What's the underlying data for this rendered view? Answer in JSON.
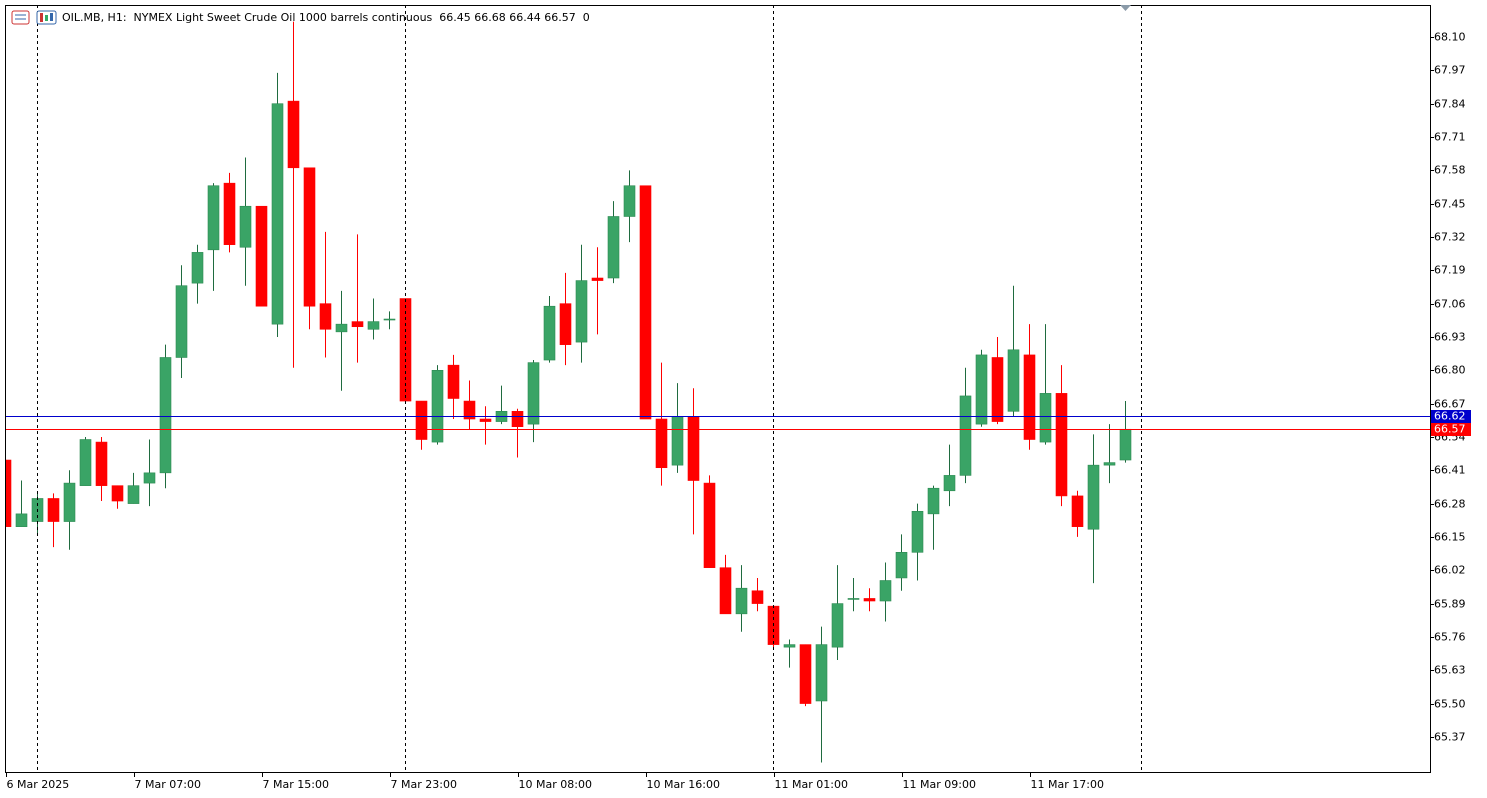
{
  "chart_data": {
    "type": "candlestick",
    "title": "OIL.MB, H1:  NYMEX Light Sweet Crude Oil 1000 barrels continuous  66.45 66.68 66.44 66.57  0",
    "categories": [
      "6 Mar 2025",
      null,
      null,
      null,
      null,
      null,
      null,
      null,
      "7 Mar 07:00",
      null,
      null,
      null,
      null,
      null,
      null,
      null,
      "7 Mar 15:00",
      null,
      null,
      null,
      null,
      null,
      null,
      null,
      "7 Mar 23:00",
      null,
      null,
      null,
      null,
      null,
      null,
      null,
      "10 Mar 08:00",
      null,
      null,
      null,
      null,
      null,
      null,
      null,
      "10 Mar 16:00",
      null,
      null,
      null,
      null,
      null,
      null,
      null,
      "11 Mar 01:00",
      null,
      null,
      null,
      null,
      null,
      null,
      null,
      "11 Mar 09:00",
      null,
      null,
      null,
      null,
      null,
      null,
      null,
      "11 Mar 17:00",
      null,
      null,
      null,
      null,
      null,
      null
    ],
    "open": [
      66.45,
      66.19,
      66.21,
      66.3,
      66.21,
      66.35,
      66.52,
      66.35,
      66.28,
      66.36,
      66.4,
      66.85,
      67.14,
      67.27,
      67.53,
      67.28,
      67.44,
      66.98,
      67.85,
      67.59,
      67.06,
      66.95,
      66.99,
      66.96,
      67.0,
      67.08,
      66.68,
      66.52,
      66.82,
      66.68,
      66.61,
      66.6,
      66.64,
      66.59,
      66.84,
      67.06,
      66.91,
      67.16,
      67.16,
      67.4,
      67.52,
      66.61,
      66.43,
      66.62,
      66.36,
      66.03,
      65.85,
      65.94,
      65.88,
      65.72,
      65.73,
      65.51,
      65.72,
      65.91,
      65.91,
      65.9,
      65.99,
      66.09,
      66.24,
      66.33,
      66.39,
      66.59,
      66.85,
      66.64,
      66.86,
      66.52,
      66.71,
      66.31,
      66.18,
      66.43,
      66.45
    ],
    "high": [
      66.45,
      66.37,
      66.32,
      66.32,
      66.41,
      66.54,
      66.54,
      66.35,
      66.4,
      66.53,
      66.9,
      67.21,
      67.29,
      67.53,
      67.57,
      67.63,
      67.44,
      67.96,
      68.16,
      67.59,
      67.34,
      67.11,
      67.33,
      67.08,
      67.03,
      67.08,
      66.68,
      66.82,
      66.86,
      66.76,
      66.66,
      66.74,
      66.65,
      66.84,
      67.09,
      67.18,
      67.29,
      67.28,
      67.46,
      67.58,
      67.52,
      66.83,
      66.75,
      66.73,
      66.39,
      66.08,
      66.04,
      65.99,
      65.88,
      65.75,
      65.73,
      65.8,
      66.04,
      65.99,
      65.95,
      66.05,
      66.16,
      66.28,
      66.35,
      66.51,
      66.81,
      66.88,
      66.93,
      67.13,
      66.98,
      66.98,
      66.82,
      66.33,
      66.55,
      66.59,
      66.68
    ],
    "low": [
      66.19,
      66.19,
      66.16,
      66.11,
      66.1,
      66.35,
      66.29,
      66.26,
      66.28,
      66.27,
      66.34,
      66.77,
      67.06,
      67.11,
      67.26,
      67.13,
      67.05,
      66.93,
      66.81,
      66.96,
      66.85,
      66.72,
      66.83,
      66.92,
      66.96,
      66.68,
      66.49,
      66.51,
      66.61,
      66.57,
      66.51,
      66.59,
      66.46,
      66.52,
      66.83,
      66.82,
      66.83,
      66.94,
      67.14,
      67.3,
      66.61,
      66.35,
      66.4,
      66.16,
      66.03,
      65.85,
      65.78,
      65.86,
      65.72,
      65.64,
      65.49,
      65.27,
      65.67,
      65.86,
      65.86,
      65.82,
      65.94,
      65.98,
      66.1,
      66.27,
      66.36,
      66.58,
      66.59,
      66.62,
      66.49,
      66.51,
      66.27,
      66.15,
      65.97,
      66.36,
      66.44
    ],
    "close": [
      66.19,
      66.24,
      66.3,
      66.21,
      66.36,
      66.53,
      66.35,
      66.29,
      66.35,
      66.4,
      66.85,
      67.13,
      67.26,
      67.52,
      67.29,
      67.44,
      67.05,
      67.84,
      67.59,
      67.05,
      66.96,
      66.98,
      66.97,
      66.99,
      67.0,
      66.68,
      66.53,
      66.8,
      66.69,
      66.61,
      66.6,
      66.64,
      66.58,
      66.83,
      67.05,
      66.9,
      67.15,
      67.15,
      67.4,
      67.52,
      66.61,
      66.42,
      66.62,
      66.37,
      66.03,
      65.85,
      65.95,
      65.89,
      65.73,
      65.73,
      65.5,
      65.73,
      65.89,
      65.91,
      65.9,
      65.98,
      66.09,
      66.25,
      66.34,
      66.39,
      66.7,
      66.86,
      66.6,
      66.88,
      66.53,
      66.71,
      66.31,
      66.19,
      66.43,
      66.44,
      66.57
    ],
    "up_color": "#3aa466",
    "down_color": "#ff0000",
    "ask": 66.62,
    "ask_color": "#0000cc",
    "bid": 66.57,
    "bid_color": "#ff0000",
    "ylim": [
      65.233,
      68.225
    ],
    "yticks": [
      {
        "value": 68.1,
        "label": "68.10"
      },
      67.97,
      67.84,
      67.71,
      67.58,
      67.45,
      67.32,
      67.19,
      67.06,
      66.93,
      {
        "value": 66.8,
        "label": "66.80"
      },
      66.67,
      66.54,
      66.41,
      66.28,
      66.15,
      66.02,
      65.89,
      65.76,
      65.63,
      {
        "value": 65.5,
        "label": "65.50"
      },
      65.37
    ]
  }
}
